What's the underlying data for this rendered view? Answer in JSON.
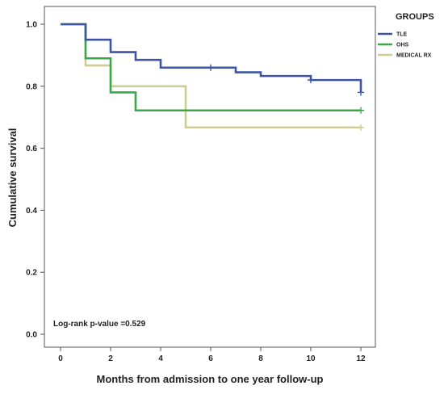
{
  "chart_data": {
    "type": "line",
    "step": true,
    "xlabel": "Months from admission to one year follow-up",
    "ylabel": "Cumulative survival",
    "xlim": [
      0,
      12
    ],
    "ylim": [
      0,
      1
    ],
    "xticks": [
      "0",
      "2",
      "4",
      "6",
      "8",
      "10",
      "12"
    ],
    "yticks": [
      "0.0",
      "0.2",
      "0.4",
      "0.6",
      "0.8",
      "1.0"
    ],
    "grid": false,
    "legend": {
      "title": "GROUPS",
      "placement": "top-right"
    },
    "annotation": "Log-rank p-value =0.529",
    "series": [
      {
        "name": "TLE",
        "color": "#3f53a3",
        "steps": [
          [
            0,
            1.0
          ],
          [
            1,
            0.95
          ],
          [
            2,
            0.91
          ],
          [
            3,
            0.885
          ],
          [
            4,
            0.86
          ],
          [
            7,
            0.845
          ],
          [
            8,
            0.833
          ],
          [
            10,
            0.82
          ],
          [
            12,
            0.78
          ]
        ],
        "end": 12,
        "censored": [
          [
            6,
            0.86
          ],
          [
            10,
            0.82
          ],
          [
            12,
            0.78
          ]
        ]
      },
      {
        "name": "OHS",
        "color": "#3aa848",
        "steps": [
          [
            0,
            1.0
          ],
          [
            1,
            0.89
          ],
          [
            2,
            0.78
          ],
          [
            3,
            0.722
          ]
        ],
        "end": 12,
        "censored": [
          [
            12,
            0.722
          ]
        ]
      },
      {
        "name": "MEDICAL RX",
        "color": "#cfcb94",
        "steps": [
          [
            0,
            1.0
          ],
          [
            1,
            0.867
          ],
          [
            2,
            0.8
          ],
          [
            5,
            0.667
          ]
        ],
        "end": 12,
        "censored": [
          [
            12,
            0.667
          ]
        ]
      }
    ]
  }
}
